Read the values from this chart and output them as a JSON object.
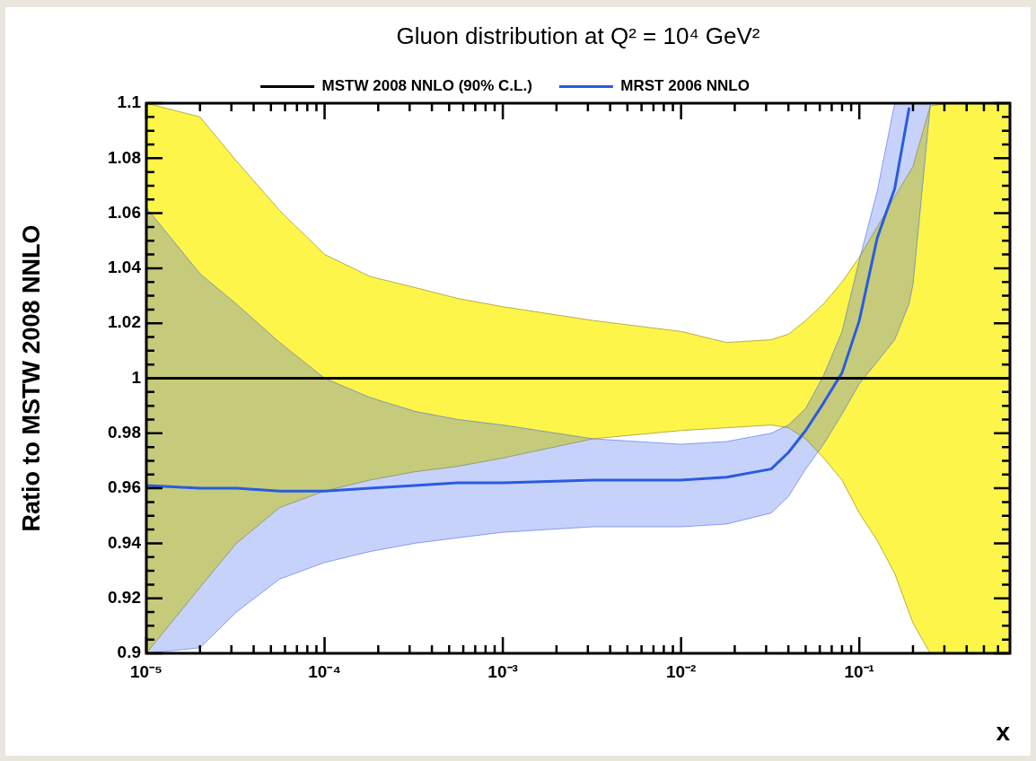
{
  "chart_data": {
    "type": "line",
    "title": "Gluon distribution at Q² = 10⁴ GeV²",
    "xlabel": "x",
    "ylabel": "Ratio to MSTW 2008 NNLO",
    "log": "x",
    "legend": "top",
    "xlim": [
      1e-05,
      0.7
    ],
    "ylim": [
      0.9,
      1.1
    ],
    "xticks": [
      {
        "value": 1e-05,
        "label": "10⁻⁵"
      },
      {
        "value": 2e-05,
        "label": null
      },
      {
        "value": 3e-05,
        "label": null
      },
      {
        "value": 4e-05,
        "label": null
      },
      {
        "value": 5e-05,
        "label": null
      },
      {
        "value": 6e-05,
        "label": null
      },
      {
        "value": 7e-05,
        "label": null
      },
      {
        "value": 8e-05,
        "label": null
      },
      {
        "value": 9e-05,
        "label": null
      },
      {
        "value": 0.0001,
        "label": "10⁻⁴"
      },
      {
        "value": 0.0002,
        "label": null
      },
      {
        "value": 0.0003,
        "label": null
      },
      {
        "value": 0.0004,
        "label": null
      },
      {
        "value": 0.0005,
        "label": null
      },
      {
        "value": 0.0006,
        "label": null
      },
      {
        "value": 0.0007,
        "label": null
      },
      {
        "value": 0.0008,
        "label": null
      },
      {
        "value": 0.0009,
        "label": null
      },
      {
        "value": 0.001,
        "label": "10⁻³"
      },
      {
        "value": 0.002,
        "label": null
      },
      {
        "value": 0.003,
        "label": null
      },
      {
        "value": 0.004,
        "label": null
      },
      {
        "value": 0.005,
        "label": null
      },
      {
        "value": 0.006,
        "label": null
      },
      {
        "value": 0.007,
        "label": null
      },
      {
        "value": 0.008,
        "label": null
      },
      {
        "value": 0.009,
        "label": null
      },
      {
        "value": 0.01,
        "label": "10⁻²"
      },
      {
        "value": 0.02,
        "label": null
      },
      {
        "value": 0.03,
        "label": null
      },
      {
        "value": 0.04,
        "label": null
      },
      {
        "value": 0.05,
        "label": null
      },
      {
        "value": 0.06,
        "label": null
      },
      {
        "value": 0.07,
        "label": null
      },
      {
        "value": 0.08,
        "label": null
      },
      {
        "value": 0.09,
        "label": null
      },
      {
        "value": 0.1,
        "label": "10⁻¹"
      },
      {
        "value": 0.2,
        "label": null
      },
      {
        "value": 0.3,
        "label": null
      },
      {
        "value": 0.4,
        "label": null
      },
      {
        "value": 0.5,
        "label": null
      },
      {
        "value": 0.6,
        "label": null
      }
    ],
    "yticks": [
      0.9,
      {
        "value": 0.905,
        "label": null
      },
      {
        "value": 0.91,
        "label": null
      },
      {
        "value": 0.915,
        "label": null
      },
      0.92,
      {
        "value": 0.925,
        "label": null
      },
      {
        "value": 0.93,
        "label": null
      },
      {
        "value": 0.935,
        "label": null
      },
      0.94,
      {
        "value": 0.945,
        "label": null
      },
      {
        "value": 0.95,
        "label": null
      },
      {
        "value": 0.955,
        "label": null
      },
      0.96,
      {
        "value": 0.965,
        "label": null
      },
      {
        "value": 0.97,
        "label": null
      },
      {
        "value": 0.975,
        "label": null
      },
      0.98,
      {
        "value": 0.985,
        "label": null
      },
      {
        "value": 0.99,
        "label": null
      },
      {
        "value": 0.995,
        "label": null
      },
      1,
      {
        "value": 1.005,
        "label": null
      },
      {
        "value": 1.01,
        "label": null
      },
      {
        "value": 1.015,
        "label": null
      },
      1.02,
      {
        "value": 1.025,
        "label": null
      },
      {
        "value": 1.03,
        "label": null
      },
      {
        "value": 1.035,
        "label": null
      },
      1.04,
      {
        "value": 1.045,
        "label": null
      },
      {
        "value": 1.05,
        "label": null
      },
      {
        "value": 1.055,
        "label": null
      },
      1.06,
      {
        "value": 1.065,
        "label": null
      },
      {
        "value": 1.07,
        "label": null
      },
      {
        "value": 1.075,
        "label": null
      },
      1.08,
      {
        "value": 1.085,
        "label": null
      },
      {
        "value": 1.09,
        "label": null
      },
      {
        "value": 1.095,
        "label": null
      },
      1.1
    ],
    "series": [
      {
        "name": "MSTW 2008 NNLO (90% C.L.)",
        "color": "#000000",
        "x": [
          1e-05,
          2e-05,
          3.2e-05,
          5.6e-05,
          0.0001,
          0.00018,
          0.00032,
          0.00056,
          0.001,
          0.0032,
          0.01,
          0.018,
          0.032,
          0.04,
          0.05,
          0.063,
          0.08,
          0.1,
          0.126,
          0.158,
          0.2,
          0.25,
          0.316,
          0.4,
          0.5,
          0.63,
          0.7
        ],
        "values": [
          1,
          1,
          1,
          1,
          1,
          1,
          1,
          1,
          1,
          1,
          1,
          1,
          1,
          1,
          1,
          1,
          1,
          1,
          1,
          1,
          1,
          1,
          1,
          1,
          1,
          1,
          1
        ],
        "upper": [
          1.1,
          1.095,
          1.079,
          1.061,
          1.045,
          1.037,
          1.033,
          1.029,
          1.026,
          1.021,
          1.017,
          1.013,
          1.014,
          1.016,
          1.021,
          1.027,
          1.035,
          1.044,
          1.055,
          1.066,
          1.077,
          1.099,
          1.1,
          1.1,
          1.1,
          1.1,
          1.1
        ],
        "lower": [
          0.9,
          0.924,
          0.94,
          0.953,
          0.959,
          0.963,
          0.966,
          0.968,
          0.971,
          0.978,
          0.981,
          0.982,
          0.983,
          0.982,
          0.978,
          0.971,
          0.963,
          0.951,
          0.941,
          0.929,
          0.911,
          0.9,
          0.9,
          0.9,
          0.9,
          0.9,
          0.9
        ]
      },
      {
        "name": "MRST 2006 NNLO",
        "color": "#2a5be0",
        "x": [
          1e-05,
          2e-05,
          3.2e-05,
          5.6e-05,
          0.0001,
          0.00018,
          0.00032,
          0.00056,
          0.001,
          0.0032,
          0.01,
          0.018,
          0.032,
          0.04,
          0.05,
          0.063,
          0.08,
          0.1,
          0.126,
          0.158,
          0.19,
          0.2,
          0.25
        ],
        "values": [
          0.961,
          0.96,
          0.96,
          0.959,
          0.959,
          0.96,
          0.961,
          0.962,
          0.962,
          0.963,
          0.963,
          0.964,
          0.967,
          0.973,
          0.981,
          0.991,
          1.002,
          1.021,
          1.051,
          1.069,
          1.098,
          null,
          null
        ],
        "upper": [
          1.062,
          1.038,
          1.027,
          1.013,
          1.0,
          0.993,
          0.988,
          0.985,
          0.983,
          0.978,
          0.976,
          0.977,
          0.98,
          0.983,
          0.989,
          1.001,
          1.017,
          1.043,
          1.068,
          1.1,
          1.1,
          1.1,
          1.1
        ],
        "lower": [
          0.9,
          0.902,
          0.915,
          0.927,
          0.933,
          0.937,
          0.94,
          0.942,
          0.944,
          0.946,
          0.946,
          0.947,
          0.951,
          0.957,
          0.967,
          0.976,
          0.987,
          0.998,
          1.006,
          1.014,
          1.027,
          1.034,
          1.099
        ]
      }
    ]
  }
}
